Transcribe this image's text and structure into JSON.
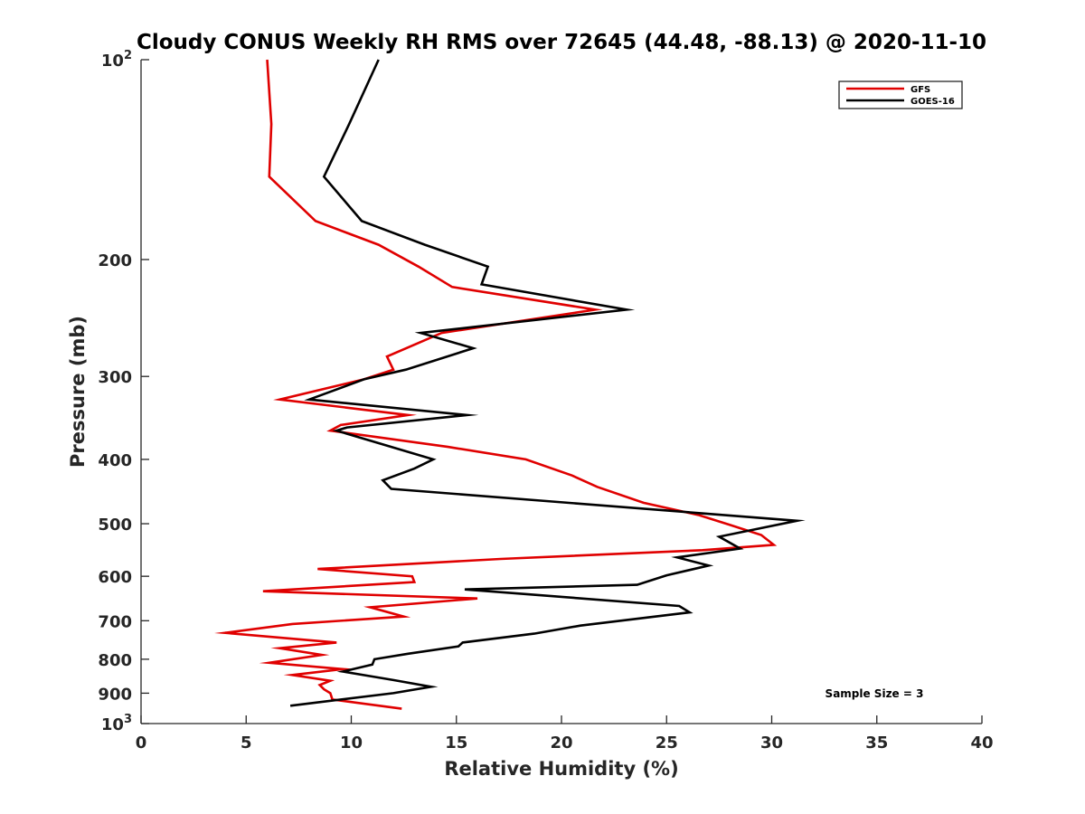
{
  "chart_data": {
    "type": "line",
    "title": "Cloudy CONUS Weekly RH RMS over 72645 (44.48, -88.13) @ 2020-11-10",
    "xlabel": "Relative Humidity (%)",
    "ylabel": "Pressure (mb)",
    "xlim": [
      0,
      40
    ],
    "ylim": [
      100,
      1000
    ],
    "y_scale": "log",
    "y_reversed": true,
    "x_ticks": [
      0,
      5,
      10,
      15,
      20,
      25,
      30,
      35,
      40
    ],
    "x_tick_labels": [
      "0",
      "5",
      "10",
      "15",
      "20",
      "25",
      "30",
      "35",
      "40"
    ],
    "y_ticks": [
      100,
      200,
      300,
      400,
      500,
      600,
      700,
      800,
      900,
      1000
    ],
    "y_tick_labels": [
      {
        "base": "10",
        "exp": "2"
      },
      {
        "base": "200",
        "exp": ""
      },
      {
        "base": "300",
        "exp": ""
      },
      {
        "base": "400",
        "exp": ""
      },
      {
        "base": "500",
        "exp": ""
      },
      {
        "base": "600",
        "exp": ""
      },
      {
        "base": "700",
        "exp": ""
      },
      {
        "base": "800",
        "exp": ""
      },
      {
        "base": "900",
        "exp": ""
      },
      {
        "base": "10",
        "exp": "3"
      }
    ],
    "grid": false,
    "legend_position": "top-right",
    "annotation": "Sample Size = 3",
    "series": [
      {
        "name": "GFS",
        "color": "#e00000",
        "points": [
          [
            6.0,
            100
          ],
          [
            6.2,
            125
          ],
          [
            6.1,
            150
          ],
          [
            8.3,
            175
          ],
          [
            11.3,
            190
          ],
          [
            13.2,
            205
          ],
          [
            14.8,
            220
          ],
          [
            21.6,
            238
          ],
          [
            14.3,
            258
          ],
          [
            11.7,
            280
          ],
          [
            12.0,
            293
          ],
          [
            10.6,
            303
          ],
          [
            6.6,
            325
          ],
          [
            12.7,
            343
          ],
          [
            9.5,
            355
          ],
          [
            9.0,
            362
          ],
          [
            14.6,
            383
          ],
          [
            18.3,
            400
          ],
          [
            20.5,
            423
          ],
          [
            21.7,
            440
          ],
          [
            23.9,
            465
          ],
          [
            26.5,
            485
          ],
          [
            28.0,
            502
          ],
          [
            29.5,
            520
          ],
          [
            30.1,
            538
          ],
          [
            26.7,
            548
          ],
          [
            17.1,
            565
          ],
          [
            8.4,
            585
          ],
          [
            12.9,
            600
          ],
          [
            13.0,
            612
          ],
          [
            5.8,
            632
          ],
          [
            16.0,
            648
          ],
          [
            10.9,
            668
          ],
          [
            12.5,
            690
          ],
          [
            7.2,
            708
          ],
          [
            4.0,
            730
          ],
          [
            9.3,
            755
          ],
          [
            6.6,
            770
          ],
          [
            8.6,
            788
          ],
          [
            6.1,
            810
          ],
          [
            9.6,
            828
          ],
          [
            7.2,
            845
          ],
          [
            9.0,
            862
          ],
          [
            8.5,
            875
          ],
          [
            8.7,
            888
          ],
          [
            9.0,
            900
          ],
          [
            9.1,
            920
          ],
          [
            12.4,
            950
          ]
        ]
      },
      {
        "name": "GOES-16",
        "color": "#000000",
        "points": [
          [
            11.3,
            100
          ],
          [
            9.9,
            125
          ],
          [
            8.7,
            150
          ],
          [
            10.5,
            175
          ],
          [
            13.5,
            190
          ],
          [
            16.5,
            205
          ],
          [
            16.2,
            218
          ],
          [
            23.1,
            238
          ],
          [
            13.3,
            258
          ],
          [
            15.8,
            272
          ],
          [
            12.6,
            293
          ],
          [
            10.6,
            303
          ],
          [
            8.0,
            325
          ],
          [
            15.5,
            343
          ],
          [
            9.8,
            358
          ],
          [
            9.3,
            362
          ],
          [
            13.9,
            400
          ],
          [
            13.0,
            413
          ],
          [
            11.5,
            430
          ],
          [
            11.9,
            443
          ],
          [
            31.2,
            495
          ],
          [
            27.5,
            523
          ],
          [
            28.5,
            545
          ],
          [
            25.5,
            562
          ],
          [
            27.0,
            578
          ],
          [
            25.0,
            598
          ],
          [
            23.6,
            618
          ],
          [
            15.4,
            628
          ],
          [
            25.6,
            665
          ],
          [
            26.1,
            680
          ],
          [
            20.9,
            712
          ],
          [
            18.7,
            732
          ],
          [
            15.3,
            755
          ],
          [
            15.1,
            765
          ],
          [
            12.7,
            785
          ],
          [
            11.1,
            800
          ],
          [
            11.0,
            815
          ],
          [
            9.6,
            835
          ],
          [
            12.0,
            860
          ],
          [
            13.8,
            880
          ],
          [
            12.0,
            900
          ],
          [
            7.1,
            940
          ]
        ]
      }
    ]
  }
}
